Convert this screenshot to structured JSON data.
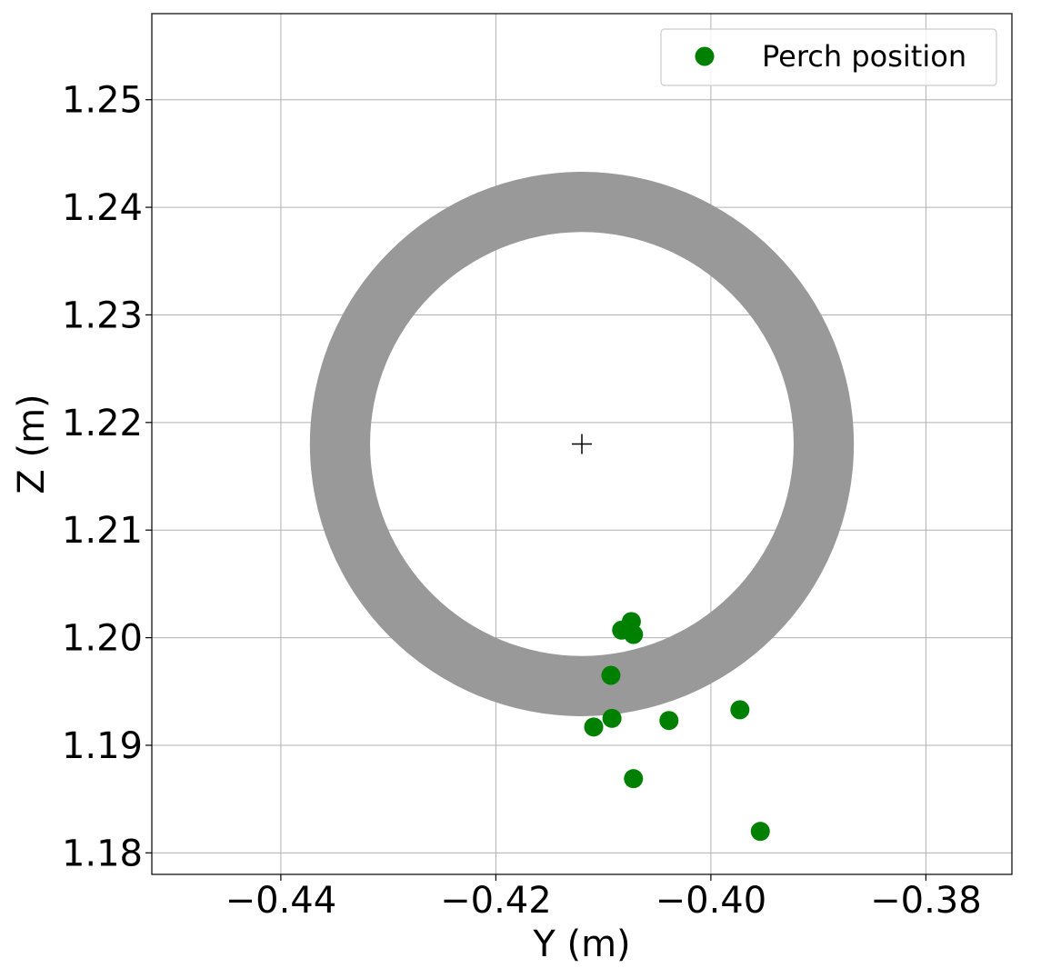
{
  "chart_data": {
    "type": "scatter",
    "xlabel": "Y (m)",
    "ylabel": "Z (m)",
    "xlim": [
      -0.452,
      -0.372
    ],
    "ylim": [
      1.178,
      1.258
    ],
    "grid": true,
    "x_ticks": [
      {
        "value": -0.44,
        "label": "−0.44"
      },
      {
        "value": -0.42,
        "label": "−0.42"
      },
      {
        "value": -0.4,
        "label": "−0.40"
      },
      {
        "value": -0.38,
        "label": "−0.38"
      }
    ],
    "y_ticks": [
      {
        "value": 1.18,
        "label": "1.18"
      },
      {
        "value": 1.19,
        "label": "1.19"
      },
      {
        "value": 1.2,
        "label": "1.20"
      },
      {
        "value": 1.21,
        "label": "1.21"
      },
      {
        "value": 1.22,
        "label": "1.22"
      },
      {
        "value": 1.23,
        "label": "1.23"
      },
      {
        "value": 1.24,
        "label": "1.24"
      },
      {
        "value": 1.25,
        "label": "1.25"
      }
    ],
    "ring": {
      "center": [
        -0.412,
        1.218
      ],
      "outer_radius": 0.0253,
      "inner_radius": 0.0197,
      "color": "#999999"
    },
    "center_marker": {
      "x": -0.412,
      "y": 1.218,
      "symbol": "+",
      "color": "#000000"
    },
    "series": [
      {
        "name": "Perch position",
        "color": "#008000",
        "points": [
          {
            "x": -0.4074,
            "y": 1.2015
          },
          {
            "x": -0.4083,
            "y": 1.2007
          },
          {
            "x": -0.4072,
            "y": 1.2003
          },
          {
            "x": -0.4093,
            "y": 1.1965
          },
          {
            "x": -0.4092,
            "y": 1.1925
          },
          {
            "x": -0.4109,
            "y": 1.1917
          },
          {
            "x": -0.4039,
            "y": 1.1923
          },
          {
            "x": -0.3973,
            "y": 1.1933
          },
          {
            "x": -0.4072,
            "y": 1.1869
          },
          {
            "x": -0.3954,
            "y": 1.182
          }
        ]
      }
    ],
    "legend": {
      "position": "top-right"
    }
  }
}
